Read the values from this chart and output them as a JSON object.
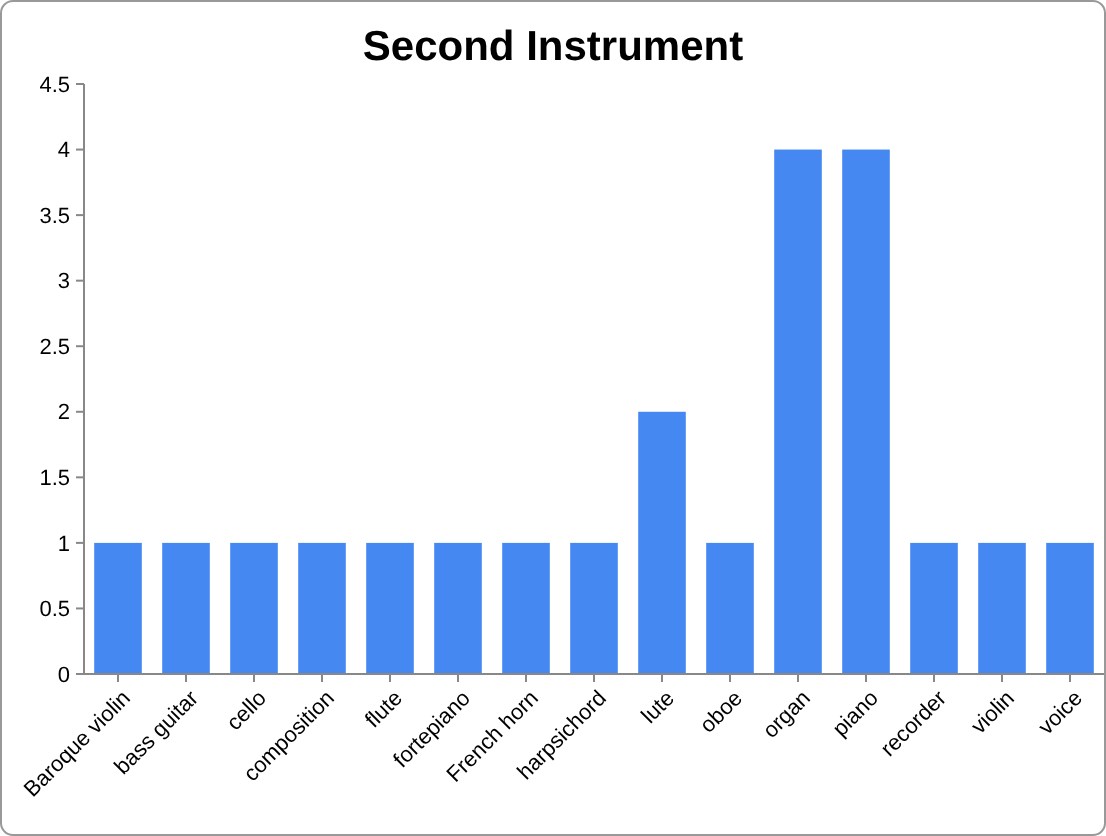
{
  "chart_data": {
    "type": "bar",
    "title": "Second Instrument",
    "categories": [
      "Baroque violin",
      "bass guitar",
      "cello",
      "composition",
      "flute",
      "fortepiano",
      "French horn",
      "harpsichord",
      "lute",
      "oboe",
      "organ",
      "piano",
      "recorder",
      "violin",
      "voice"
    ],
    "values": [
      1,
      1,
      1,
      1,
      1,
      1,
      1,
      1,
      2,
      1,
      4,
      4,
      1,
      1,
      1
    ],
    "color": "#4688f1",
    "ylim": [
      0,
      4.5
    ],
    "yticks": [
      0,
      0.5,
      1,
      1.5,
      2,
      2.5,
      3,
      3.5,
      4,
      4.5
    ],
    "grid": false
  }
}
